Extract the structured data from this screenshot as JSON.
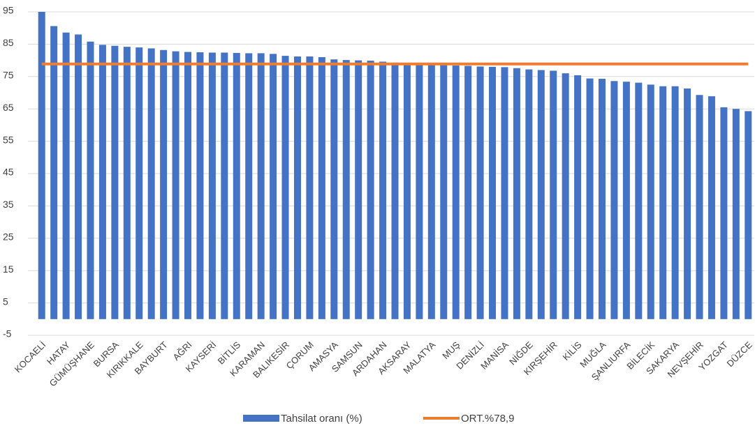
{
  "chart_data": {
    "type": "bar",
    "categories": [
      "KOCAELİ",
      null,
      "HATAY",
      null,
      "GÜMÜŞHANE",
      null,
      "BURSA",
      null,
      "KIRIKKALE",
      null,
      "BAYBURT",
      null,
      "AĞRI",
      null,
      "KAYSERİ",
      null,
      "BİTLİS",
      null,
      "KARAMAN",
      null,
      "BALIKESİR",
      null,
      "ÇORUM",
      null,
      "AMASYA",
      null,
      "SAMSUN",
      null,
      "ARDAHAN",
      null,
      "AKSARAY",
      null,
      "MALATYA",
      null,
      "MUŞ",
      null,
      "DENİZLİ",
      null,
      "MANİSA",
      null,
      "NİĞDE",
      null,
      "KIRŞEHİR",
      null,
      "KİLİS",
      null,
      "MUĞLA",
      null,
      "ŞANLIURFA",
      null,
      "BİLECİK",
      null,
      "SAKARYA",
      null,
      "NEVŞEHİR",
      null,
      "YOZGAT",
      null,
      "DÜZCE"
    ],
    "series": [
      {
        "name": "Tahsilat oranı (%)",
        "type": "bar",
        "color": "#4472c4",
        "values": [
          95.0,
          90.6,
          88.6,
          88.0,
          85.8,
          84.8,
          84.5,
          84.2,
          84.0,
          83.7,
          83.2,
          82.8,
          82.6,
          82.5,
          82.4,
          82.4,
          82.3,
          82.2,
          82.2,
          82.0,
          81.4,
          81.2,
          81.2,
          81.0,
          80.3,
          80.1,
          80.0,
          79.9,
          79.6,
          79.3,
          79.0,
          78.9,
          78.7,
          78.5,
          78.4,
          78.3,
          78.1,
          78.0,
          77.9,
          77.6,
          77.2,
          77.0,
          76.8,
          76.0,
          75.4,
          74.4,
          74.3,
          73.6,
          73.4,
          73.1,
          72.5,
          72.0,
          72.0,
          71.3,
          69.3,
          68.9,
          65.5,
          65.0,
          64.3
        ]
      },
      {
        "name": "ORT.%78,9",
        "type": "line",
        "color": "#ed7d31",
        "values": [
          78.9,
          78.9,
          78.9,
          78.9,
          78.9,
          78.9,
          78.9,
          78.9,
          78.9,
          78.9,
          78.9,
          78.9,
          78.9,
          78.9,
          78.9,
          78.9,
          78.9,
          78.9,
          78.9,
          78.9,
          78.9,
          78.9,
          78.9,
          78.9,
          78.9,
          78.9,
          78.9,
          78.9,
          78.9,
          78.9,
          78.9,
          78.9,
          78.9,
          78.9,
          78.9,
          78.9,
          78.9,
          78.9,
          78.9,
          78.9,
          78.9,
          78.9,
          78.9,
          78.9,
          78.9,
          78.9,
          78.9,
          78.9,
          78.9,
          78.9,
          78.9,
          78.9,
          78.9,
          78.9,
          78.9,
          78.9,
          78.9,
          78.9,
          78.9
        ]
      }
    ],
    "ylim": [
      -5,
      95
    ],
    "yticks": [
      -5,
      5,
      15,
      25,
      35,
      45,
      55,
      65,
      75,
      85,
      95
    ],
    "grid": true
  }
}
